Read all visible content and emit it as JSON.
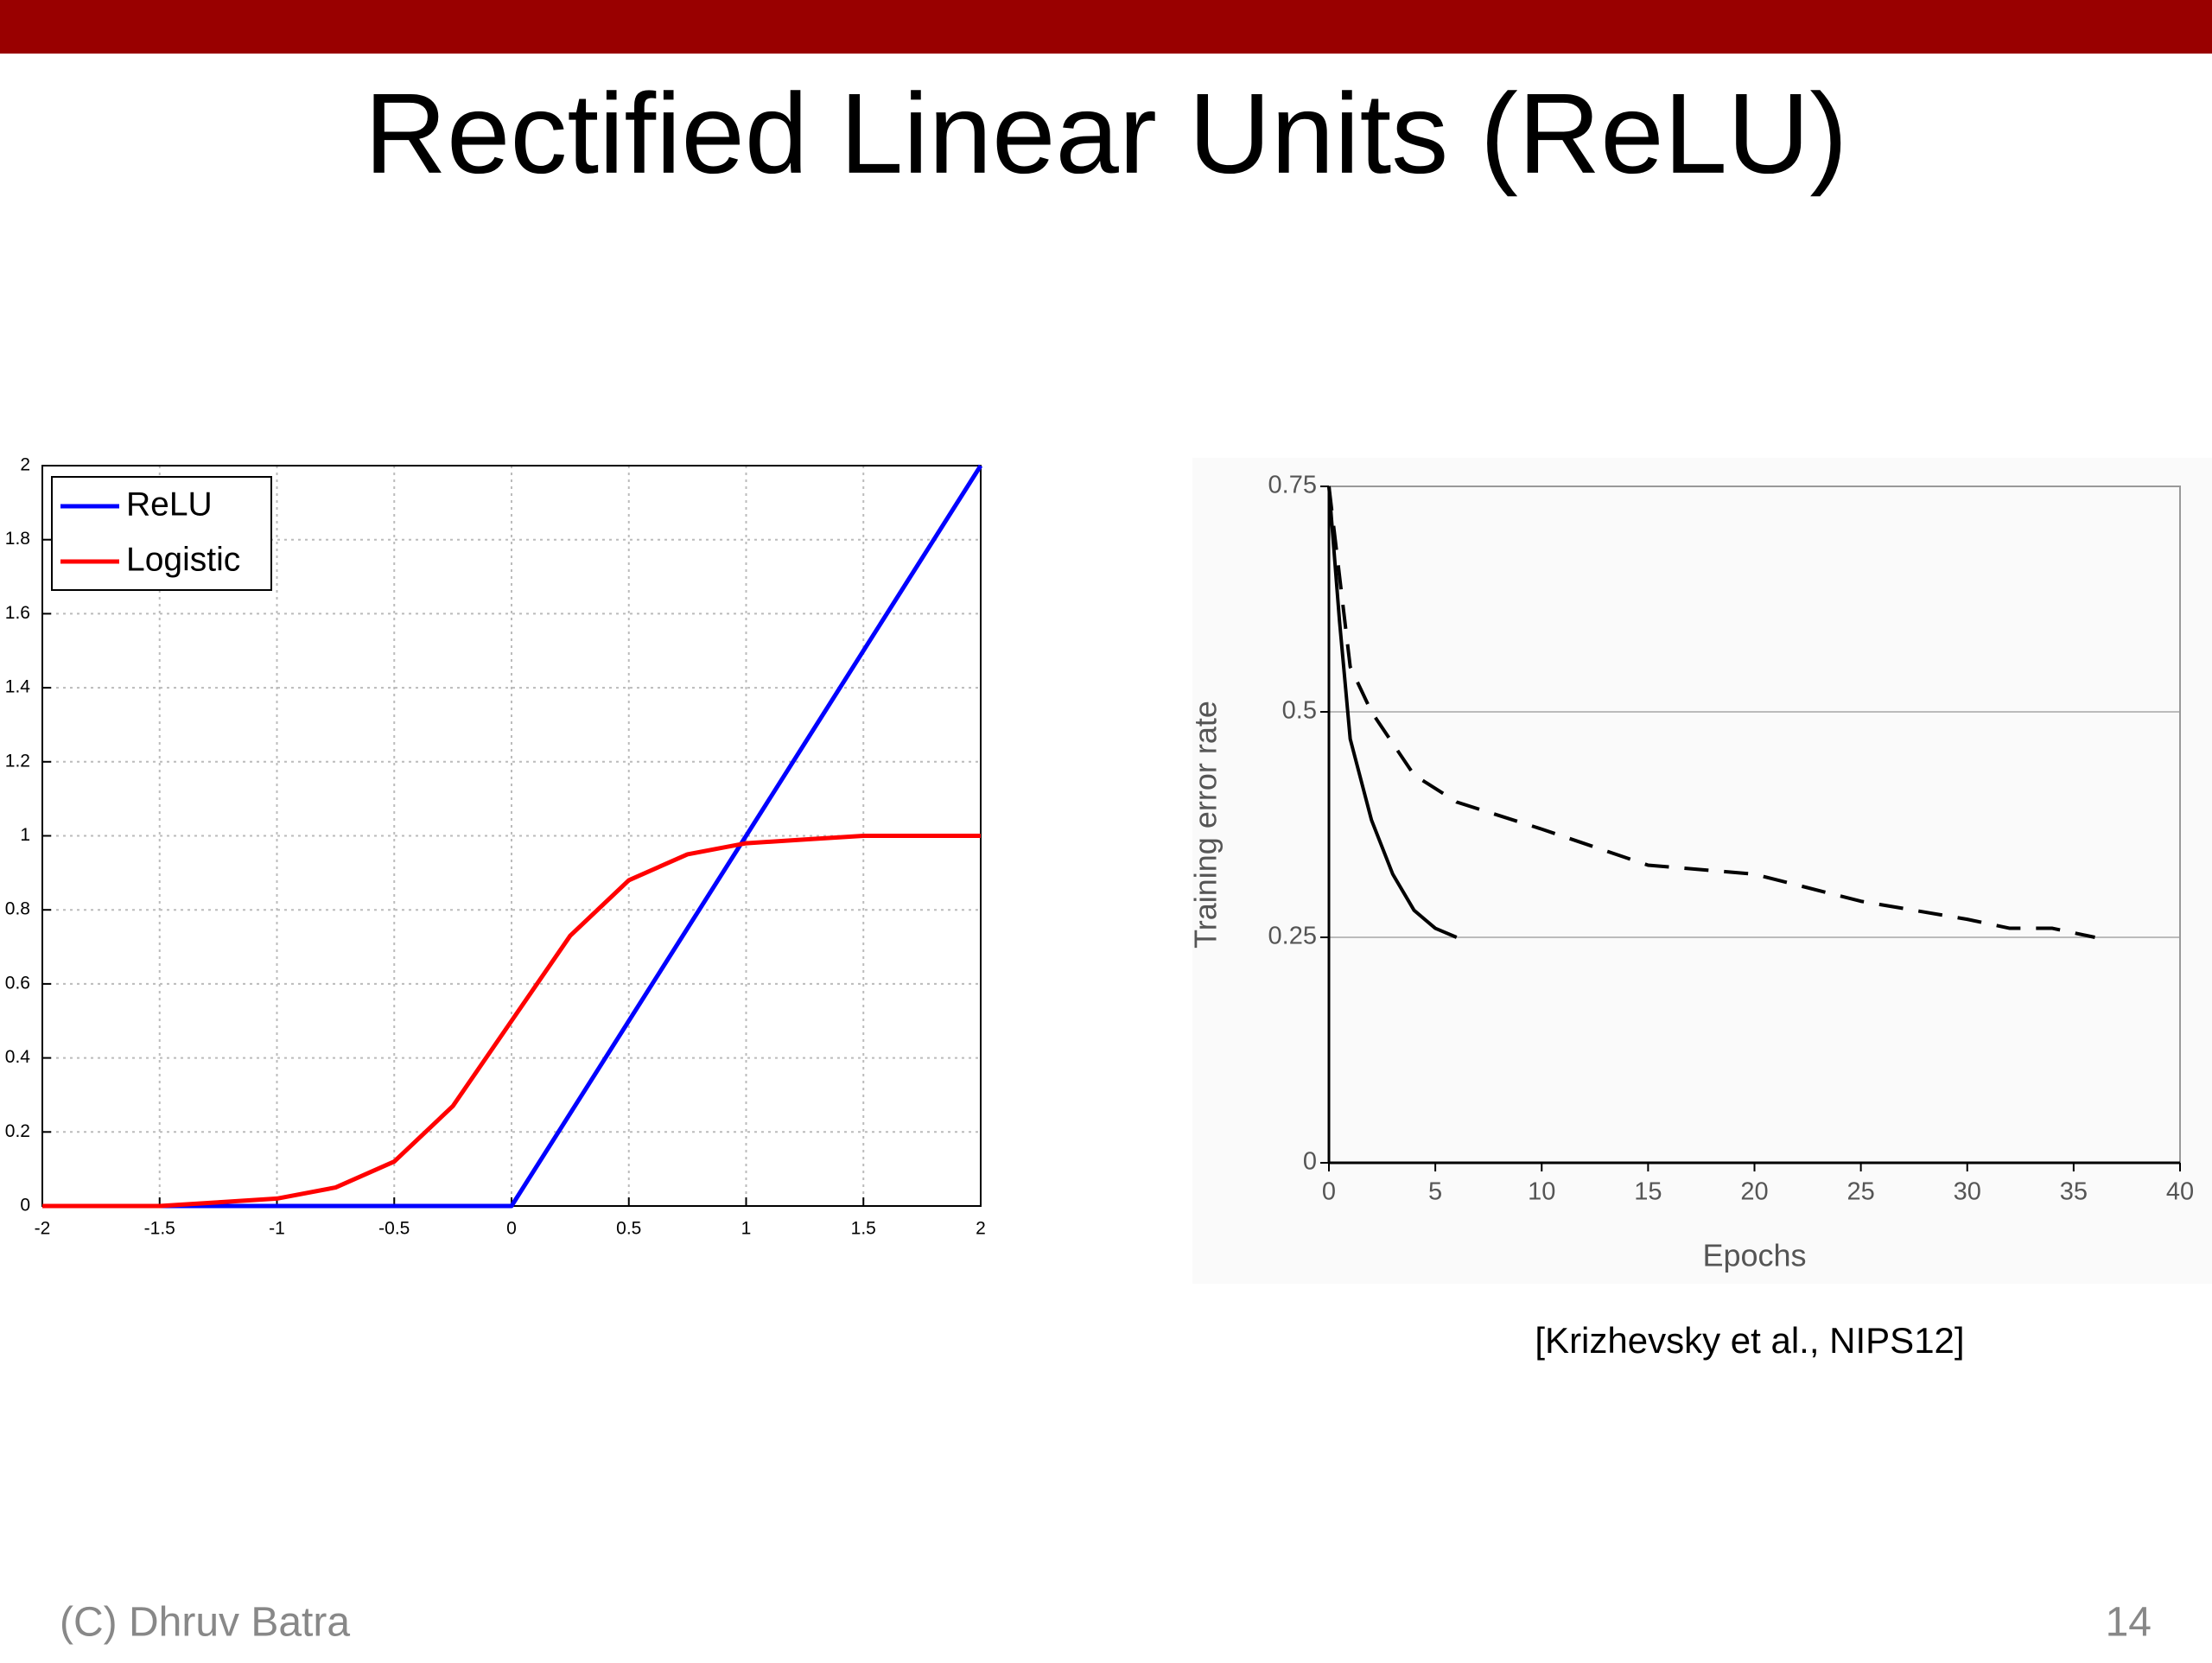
{
  "title": "Rectified Linear Units (ReLU)",
  "chart_data": [
    {
      "type": "line",
      "x": [
        -2,
        -1.75,
        -1.5,
        -1.25,
        -1,
        -0.75,
        -0.5,
        -0.25,
        0,
        0.25,
        0.5,
        0.75,
        1,
        1.25,
        1.5,
        1.75,
        2
      ],
      "series": [
        {
          "name": "ReLU",
          "color": "#0000ff",
          "values": [
            0,
            0,
            0,
            0,
            0,
            0,
            0,
            0,
            0,
            0.25,
            0.5,
            0.75,
            1,
            1.25,
            1.5,
            1.75,
            2
          ]
        },
        {
          "name": "Logistic",
          "color": "#ff0000",
          "values": [
            0,
            0,
            0,
            0.01,
            0.02,
            0.05,
            0.12,
            0.27,
            0.5,
            0.73,
            0.88,
            0.95,
            0.98,
            0.99,
            1,
            1,
            1
          ]
        }
      ],
      "xlim": [
        -2,
        2
      ],
      "ylim": [
        0,
        2
      ],
      "xticks": [
        -2,
        -1.5,
        -1,
        -0.5,
        0,
        0.5,
        1,
        1.5,
        2
      ],
      "yticks": [
        0,
        0.2,
        0.4,
        0.6,
        0.8,
        1,
        1.2,
        1.4,
        1.6,
        1.8,
        2
      ],
      "grid": "both",
      "legend": "upper left"
    },
    {
      "type": "line",
      "xlabel": "Epochs",
      "ylabel": "Training error rate",
      "series": [
        {
          "color": "#000000",
          "line_style": "solid",
          "x": [
            0,
            0.5,
            1,
            2,
            3,
            4,
            5,
            6
          ],
          "values": [
            0.75,
            0.6,
            0.47,
            0.38,
            0.32,
            0.28,
            0.26,
            0.25
          ]
        },
        {
          "color": "#000000",
          "line_style": "dashed",
          "x": [
            0,
            1,
            2,
            4,
            6,
            10,
            15,
            20,
            25,
            30,
            32,
            34,
            36
          ],
          "values": [
            0.75,
            0.55,
            0.5,
            0.43,
            0.4,
            0.37,
            0.33,
            0.32,
            0.29,
            0.27,
            0.26,
            0.26,
            0.25
          ]
        }
      ],
      "xlim": [
        0,
        40
      ],
      "ylim": [
        0,
        0.75
      ],
      "xticks": [
        0,
        5,
        10,
        15,
        20,
        25,
        30,
        35,
        40
      ],
      "yticks": [
        0,
        0.25,
        0.5,
        0.75
      ],
      "grid": "y"
    }
  ],
  "caption": "[Krizhevsky et al., NIPS12]",
  "footer": "(C) Dhruv Batra",
  "page_number": "14"
}
